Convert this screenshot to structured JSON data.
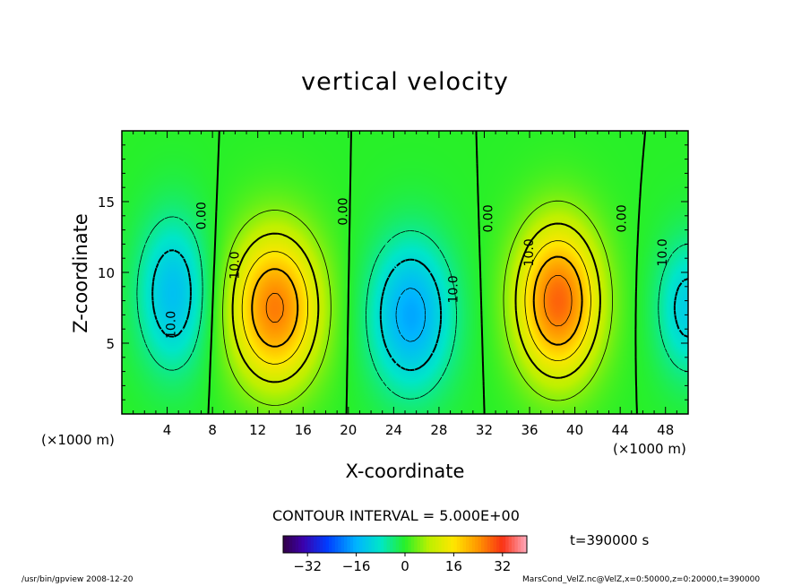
{
  "chart_data": {
    "type": "heatmap",
    "title": "vertical velocity",
    "xlabel": "X-coordinate",
    "ylabel": "Z-coordinate",
    "x_unit_left": "(×1000 m)",
    "x_unit_right": "(×1000 m)",
    "xlim": [
      0,
      50
    ],
    "ylim": [
      0,
      20
    ],
    "x_ticks": [
      4,
      8,
      12,
      16,
      20,
      24,
      28,
      32,
      36,
      40,
      44,
      48
    ],
    "y_ticks": [
      5,
      10,
      15
    ],
    "contour_interval_text": "CONTOUR INTERVAL = 5.000E+00",
    "time_text": "t=390000 s",
    "colorbar": {
      "min": -40,
      "max": 40,
      "ticks": [
        -32,
        -16,
        0,
        16,
        32
      ],
      "tick_labels": [
        "−32",
        "−16",
        "0",
        "16",
        "32"
      ]
    },
    "cells": [
      {
        "center_x": 4.5,
        "center_z": 8.5,
        "sigma_x": 2.2,
        "sigma_z": 3.8,
        "amp": -14
      },
      {
        "center_x": 13.5,
        "center_z": 7.5,
        "sigma_x": 2.8,
        "sigma_z": 3.8,
        "amp": 26
      },
      {
        "center_x": 25.5,
        "center_z": 7.0,
        "sigma_x": 2.6,
        "sigma_z": 3.8,
        "amp": -17
      },
      {
        "center_x": 38.5,
        "center_z": 8.0,
        "sigma_x": 2.6,
        "sigma_z": 3.8,
        "amp": 28
      },
      {
        "center_x": 50.0,
        "center_z": 7.5,
        "sigma_x": 2.0,
        "sigma_z": 3.4,
        "amp": -12
      }
    ],
    "contour_labels": [
      {
        "text": "0.00",
        "x": 7.1,
        "z": 14.0
      },
      {
        "text": "0.00",
        "x": 19.6,
        "z": 14.3
      },
      {
        "text": "0.00",
        "x": 32.4,
        "z": 13.8
      },
      {
        "text": "0.00",
        "x": 44.2,
        "z": 13.8
      },
      {
        "text": "10.0",
        "x": 10.0,
        "z": 10.5
      },
      {
        "text": "10.0",
        "x": 36.0,
        "z": 11.4
      },
      {
        "text": "10.0",
        "x": 47.8,
        "z": 11.4
      },
      {
        "text": "10.0",
        "x": 4.4,
        "z": 6.3
      },
      {
        "text": "10.0",
        "x": 29.3,
        "z": 8.8
      }
    ]
  },
  "footer": {
    "left": "/usr/bin/gpview   2008-12-20",
    "right": "MarsCond_VelZ.nc@VelZ,x=0:50000,z=0:20000,t=390000"
  }
}
